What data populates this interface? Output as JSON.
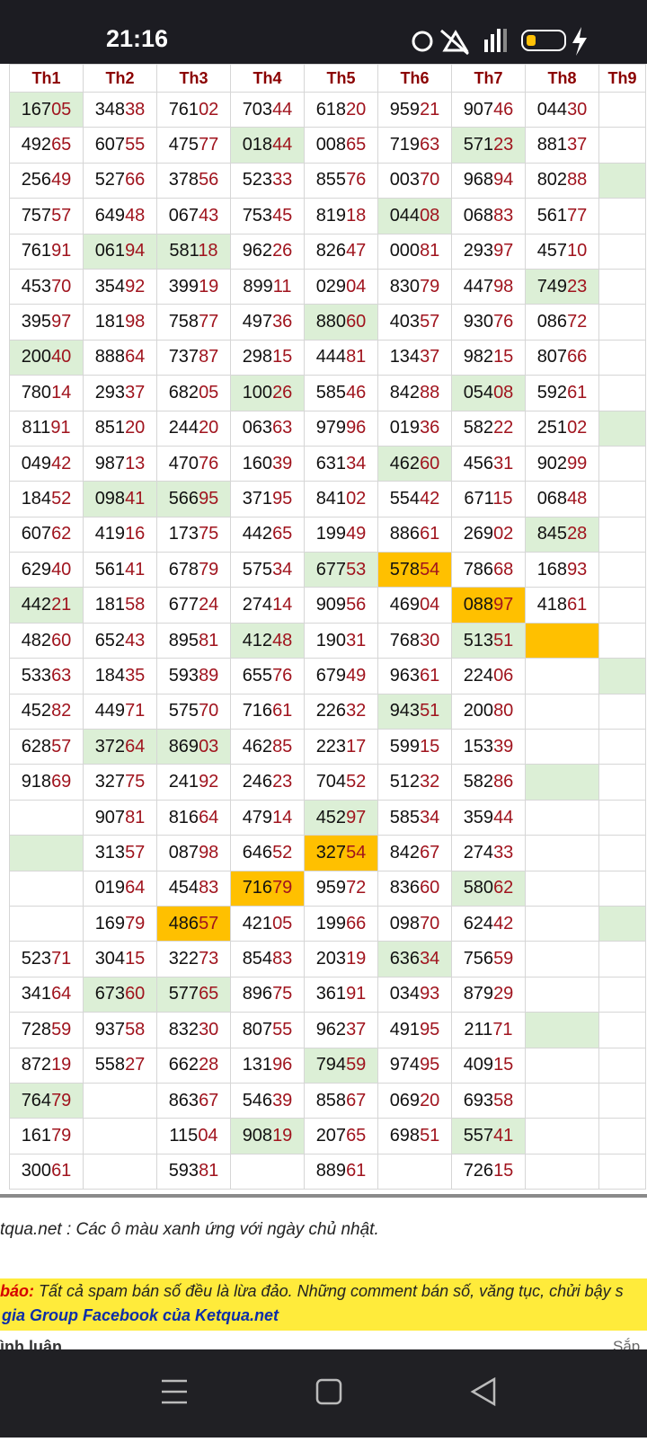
{
  "status_bar": {
    "time": "21:16"
  },
  "table": {
    "headers": [
      "Th1",
      "Th2",
      "Th3",
      "Th4",
      "Th5",
      "Th6",
      "Th7",
      "Th8",
      "Th9"
    ],
    "rows": [
      [
        {
          "text": "16705",
          "fill": "#dcefd6"
        },
        "34838",
        "76102",
        "70344",
        "61820",
        "95921",
        "90746",
        "04430",
        null
      ],
      [
        "49265",
        "60755",
        "47577",
        {
          "text": "01844",
          "fill": "#dcefd6"
        },
        "00865",
        "71963",
        {
          "text": "57123",
          "fill": "#dcefd6"
        },
        "88137",
        null
      ],
      [
        "25649",
        "52766",
        "37856",
        "52333",
        "85576",
        "00370",
        "96894",
        "80288",
        {
          "fill": "#dcefd6"
        }
      ],
      [
        "75757",
        "64948",
        "06743",
        "75345",
        "81918",
        {
          "text": "04408",
          "fill": "#dcefd6"
        },
        "06883",
        "56177",
        null
      ],
      [
        "76191",
        {
          "text": "06194",
          "fill": "#dcefd6"
        },
        {
          "text": "58118",
          "fill": "#dcefd6"
        },
        "96226",
        "82647",
        "00081",
        "29397",
        "45710",
        null
      ],
      [
        "45370",
        "35492",
        "39919",
        "89911",
        "02904",
        "83079",
        "44798",
        {
          "text": "74923",
          "fill": "#dcefd6"
        },
        null
      ],
      [
        "39597",
        "18198",
        "75877",
        "49736",
        {
          "text": "88060",
          "fill": "#dcefd6"
        },
        "40357",
        "93076",
        "08672",
        null
      ],
      [
        {
          "text": "20040",
          "fill": "#dcefd6"
        },
        "88864",
        "73787",
        "29815",
        "44481",
        "13437",
        "98215",
        "80766",
        null
      ],
      [
        "78014",
        "29337",
        "68205",
        {
          "text": "10026",
          "fill": "#dcefd6"
        },
        "58546",
        "84288",
        {
          "text": "05408",
          "fill": "#dcefd6"
        },
        "59261",
        null
      ],
      [
        "81191",
        "85120",
        "24420",
        "06363",
        "97996",
        "01936",
        "58222",
        "25102",
        {
          "fill": "#dcefd6"
        }
      ],
      [
        "04942",
        "98713",
        "47076",
        "16039",
        "63134",
        {
          "text": "46260",
          "fill": "#dcefd6"
        },
        "45631",
        "90299",
        null
      ],
      [
        "18452",
        {
          "text": "09841",
          "fill": "#dcefd6"
        },
        {
          "text": "56695",
          "fill": "#dcefd6"
        },
        "37195",
        "84102",
        "55442",
        "67115",
        "06848",
        null
      ],
      [
        "60762",
        "41916",
        "17375",
        "44265",
        "19949",
        "88661",
        "26902",
        {
          "text": "84528",
          "fill": "#dcefd6"
        },
        null
      ],
      [
        "62940",
        "56141",
        "67879",
        "57534",
        {
          "text": "67753",
          "fill": "#dcefd6"
        },
        {
          "text": "57854",
          "fill": "#ffc000"
        },
        "78668",
        "16893",
        null
      ],
      [
        {
          "text": "44221",
          "fill": "#dcefd6"
        },
        "18158",
        "67724",
        "27414",
        "90956",
        "46904",
        {
          "text": "08897",
          "fill": "#ffc000"
        },
        "41861",
        null
      ],
      [
        "48260",
        "65243",
        "89581",
        {
          "text": "41248",
          "fill": "#dcefd6"
        },
        "19031",
        "76830",
        {
          "text": "51351",
          "fill": "#dcefd6"
        },
        {
          "fill": "#ffc000"
        },
        null
      ],
      [
        "53363",
        "18435",
        "59389",
        "65576",
        "67949",
        "96361",
        "22406",
        null,
        {
          "fill": "#dcefd6"
        }
      ],
      [
        "45282",
        "44971",
        "57570",
        "71661",
        "22632",
        {
          "text": "94351",
          "fill": "#dcefd6"
        },
        "20080",
        null,
        null
      ],
      [
        "62857",
        {
          "text": "37264",
          "fill": "#dcefd6"
        },
        {
          "text": "86903",
          "fill": "#dcefd6"
        },
        "46285",
        "22317",
        "59915",
        "15339",
        null,
        null
      ],
      [
        "91869",
        "32775",
        "24192",
        "24623",
        "70452",
        "51232",
        "58286",
        {
          "fill": "#dcefd6"
        },
        null
      ],
      [
        null,
        "90781",
        "81664",
        "47914",
        {
          "text": "45297",
          "fill": "#dcefd6"
        },
        "58534",
        "35944",
        null,
        null
      ],
      [
        {
          "fill": "#dcefd6"
        },
        "31357",
        "08798",
        "64652",
        {
          "text": "32754",
          "fill": "#ffc000"
        },
        "84267",
        "27433",
        null,
        null
      ],
      [
        null,
        "01964",
        "45483",
        {
          "text": "71679",
          "fill": "#ffc000"
        },
        "95972",
        "83660",
        {
          "text": "58062",
          "fill": "#dcefd6"
        },
        null,
        null
      ],
      [
        null,
        "16979",
        {
          "text": "48657",
          "fill": "#ffc000"
        },
        "42105",
        "19966",
        "09870",
        "62442",
        null,
        {
          "fill": "#dcefd6"
        }
      ],
      [
        "52371",
        "30415",
        "32273",
        "85483",
        "20319",
        {
          "text": "63634",
          "fill": "#dcefd6"
        },
        "75659",
        null,
        null
      ],
      [
        "34164",
        {
          "text": "67360",
          "fill": "#dcefd6"
        },
        {
          "text": "57765",
          "fill": "#dcefd6"
        },
        "89675",
        "36191",
        "03493",
        "87929",
        null,
        null
      ],
      [
        "72859",
        "93758",
        "83230",
        "80755",
        "96237",
        "49195",
        "21171",
        {
          "fill": "#dcefd6"
        },
        null
      ],
      [
        "87219",
        "55827",
        "66228",
        "13196",
        {
          "text": "79459",
          "fill": "#dcefd6"
        },
        "97495",
        "40915",
        null,
        null
      ],
      [
        {
          "text": "76479",
          "fill": "#dcefd6"
        },
        null,
        "86367",
        "54639",
        "85867",
        "06920",
        "69358",
        null,
        null
      ],
      [
        "16179",
        null,
        "11504",
        {
          "text": "90819",
          "fill": "#dcefd6"
        },
        "20765",
        "69851",
        {
          "text": "55741",
          "fill": "#dcefd6"
        },
        null,
        null
      ],
      [
        "30061",
        null,
        "59381",
        null,
        "88961",
        null,
        "72615",
        null,
        null
      ]
    ]
  },
  "note": "tqua.net : Các ô màu xanh ứng với ngày chủ nhật.",
  "banner": {
    "warning_label": "báo:",
    "warning_text": "Tất cả spam bán số đều là lừa đảo. Những comment bán số, văng tục, chửi bậy s",
    "link": "gia Group Facebook của Ketqua.net"
  },
  "comments": {
    "title": "ình luận",
    "sort": "Sắp x"
  }
}
